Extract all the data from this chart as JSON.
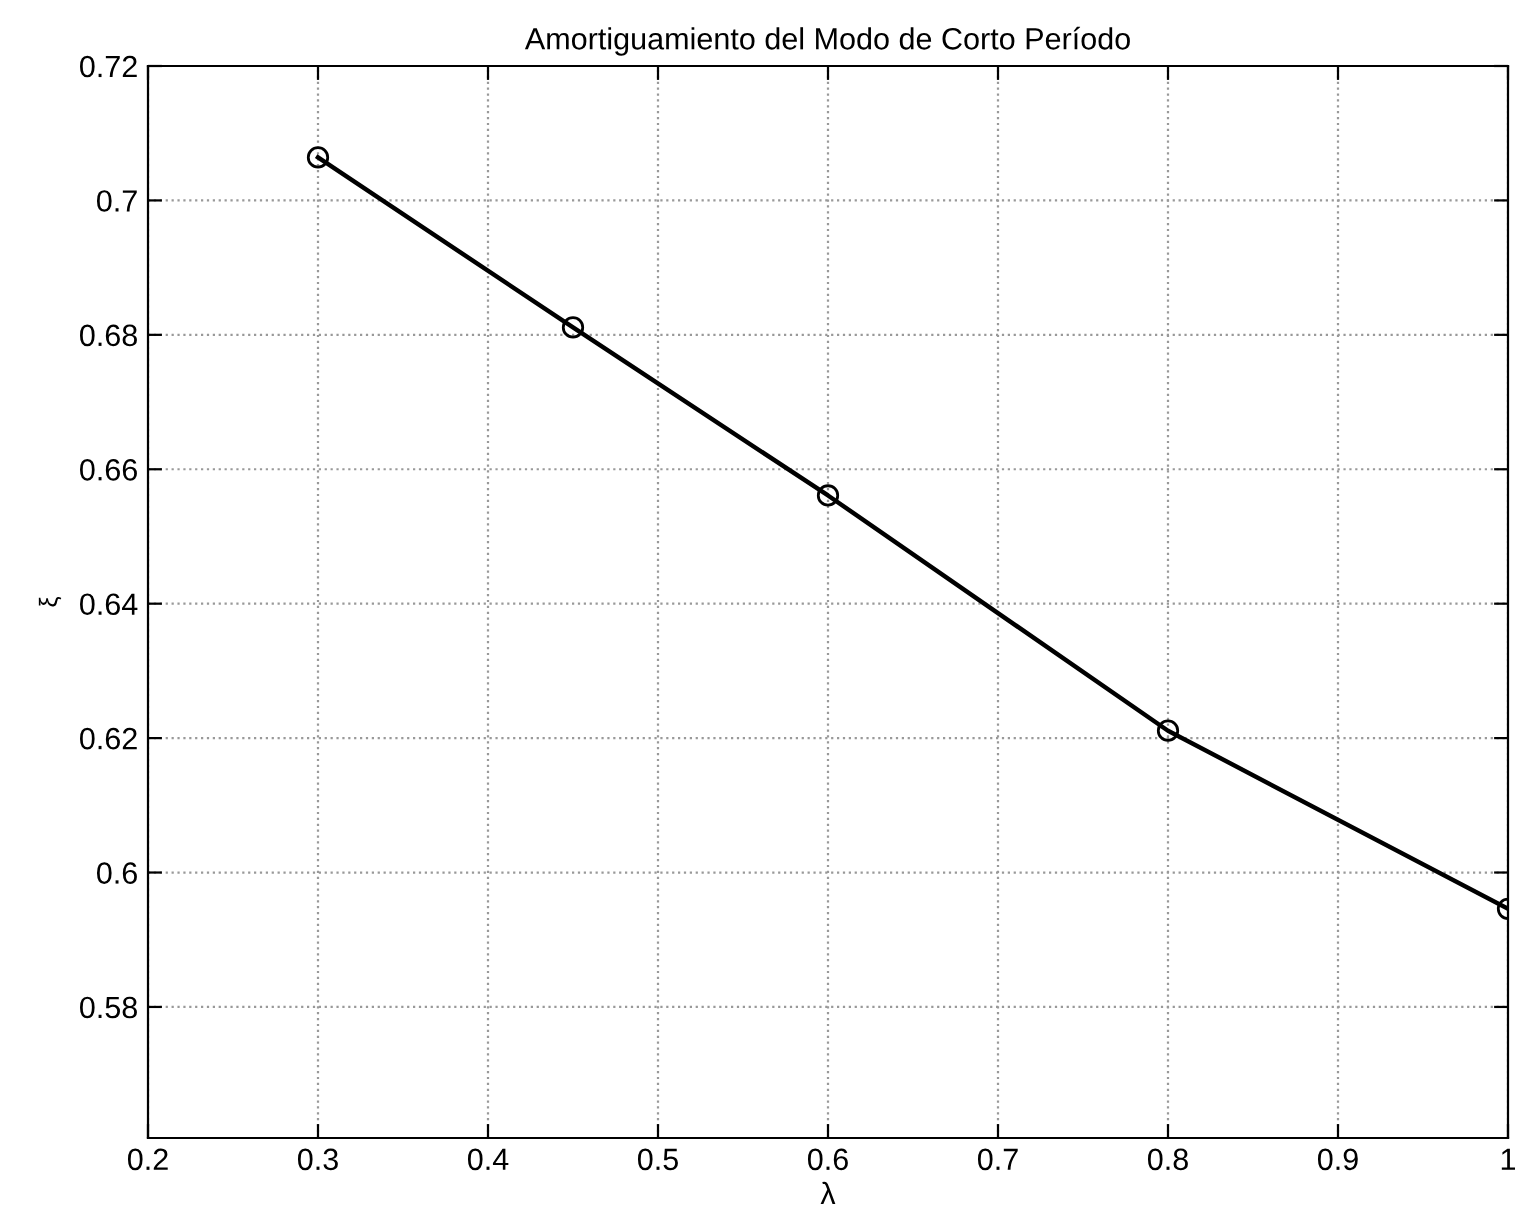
{
  "chart_data": {
    "type": "line",
    "title": "Amortiguamiento del Modo de Corto Período",
    "xlabel": "λ",
    "ylabel": "ξ",
    "x": [
      0.3,
      0.45,
      0.6,
      0.8,
      1.0
    ],
    "series": [
      {
        "color": "#000000",
        "values": [
          0.7064,
          0.6811,
          0.6561,
          0.6211,
          0.5946
        ]
      }
    ],
    "xlim": [
      0.2,
      1.0
    ],
    "xticks": [
      0.2,
      0.3,
      0.4,
      0.5,
      0.6,
      0.7,
      0.8,
      0.9,
      1
    ],
    "ylim": [
      0.5605,
      0.72
    ],
    "yticks": [
      0.58,
      0.6,
      0.62,
      0.64,
      0.66,
      0.68,
      0.7,
      0.72
    ],
    "grid": true,
    "marker": "circle",
    "line_style": "solid"
  }
}
